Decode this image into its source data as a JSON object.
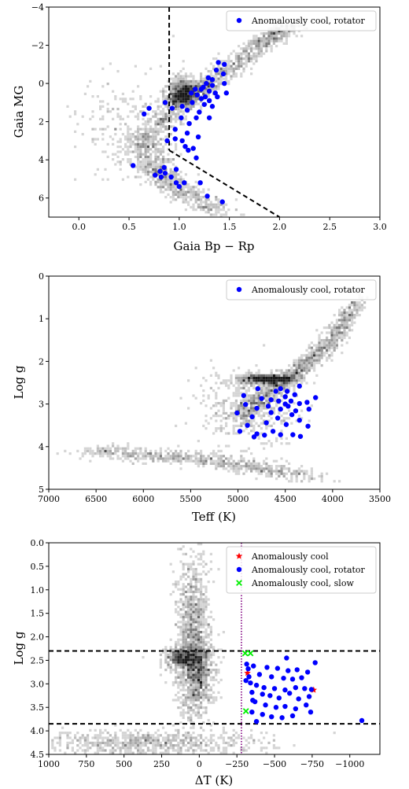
{
  "chart_data": [
    {
      "type": "scatter",
      "xlabel": "Gaia Bp − Rp",
      "ylabel": "Gaia MG",
      "xlim": [
        -0.3,
        3.0
      ],
      "ylim": [
        7.0,
        -4.0
      ],
      "x_ticks": [
        0.0,
        0.5,
        1.0,
        1.5,
        2.0,
        2.5,
        3.0
      ],
      "x_tick_labels": [
        "0.0",
        "0.5",
        "1.0",
        "1.5",
        "2.0",
        "2.5",
        "3.0"
      ],
      "y_ticks": [
        -4,
        -2,
        0,
        2,
        4,
        6
      ],
      "y_tick_labels": [
        "−4",
        "−2",
        "0",
        "2",
        "4",
        "6"
      ],
      "legend": {
        "position": "top-right",
        "entries": [
          {
            "label": "Anomalously cool, rotator",
            "color": "#0000ff",
            "marker": "circle"
          }
        ]
      },
      "background": "greyscale 2D histogram of the full stellar sample (red clump, giant branch and main sequence)",
      "reference_lines": [
        {
          "style": "dashed",
          "color": "#000000",
          "points": [
            [
              0.9,
              -4.0
            ],
            [
              0.9,
              3.5
            ]
          ]
        },
        {
          "style": "dashed",
          "color": "#000000",
          "points": [
            [
              0.9,
              3.5
            ],
            [
              2.0,
              7.0
            ]
          ]
        }
      ],
      "series": [
        {
          "name": "Anomalously cool, rotator",
          "color": "#0000ff",
          "points": [
            [
              1.39,
              -1.1
            ],
            [
              1.45,
              -1.0
            ],
            [
              1.37,
              -0.7
            ],
            [
              1.44,
              -0.5
            ],
            [
              1.29,
              -0.3
            ],
            [
              1.33,
              -0.2
            ],
            [
              1.45,
              0.0
            ],
            [
              1.27,
              0.0
            ],
            [
              1.33,
              0.1
            ],
            [
              1.24,
              0.2
            ],
            [
              1.16,
              0.3
            ],
            [
              1.22,
              0.3
            ],
            [
              1.3,
              0.4
            ],
            [
              1.36,
              0.5
            ],
            [
              1.47,
              0.5
            ],
            [
              1.12,
              0.5
            ],
            [
              1.18,
              0.6
            ],
            [
              1.26,
              0.7
            ],
            [
              1.38,
              0.7
            ],
            [
              1.22,
              0.8
            ],
            [
              1.3,
              0.9
            ],
            [
              1.13,
              1.0
            ],
            [
              0.86,
              1.0
            ],
            [
              1.25,
              1.1
            ],
            [
              1.33,
              1.2
            ],
            [
              1.03,
              1.2
            ],
            [
              0.93,
              1.3
            ],
            [
              1.08,
              1.4
            ],
            [
              1.2,
              1.5
            ],
            [
              0.7,
              1.3
            ],
            [
              0.65,
              1.6
            ],
            [
              1.17,
              1.8
            ],
            [
              1.02,
              1.8
            ],
            [
              1.3,
              1.8
            ],
            [
              1.1,
              2.1
            ],
            [
              0.96,
              2.4
            ],
            [
              1.08,
              2.6
            ],
            [
              1.19,
              2.8
            ],
            [
              0.96,
              2.9
            ],
            [
              1.03,
              3.0
            ],
            [
              0.88,
              3.0
            ],
            [
              1.06,
              3.3
            ],
            [
              1.14,
              3.4
            ],
            [
              1.09,
              3.5
            ],
            [
              1.17,
              3.9
            ],
            [
              0.54,
              4.3
            ],
            [
              0.85,
              4.4
            ],
            [
              0.97,
              4.5
            ],
            [
              0.81,
              4.6
            ],
            [
              0.86,
              4.7
            ],
            [
              0.76,
              4.8
            ],
            [
              0.82,
              4.9
            ],
            [
              0.92,
              4.9
            ],
            [
              0.97,
              5.2
            ],
            [
              1.05,
              5.2
            ],
            [
              1.21,
              5.2
            ],
            [
              1.0,
              5.4
            ],
            [
              1.28,
              5.9
            ],
            [
              1.43,
              6.2
            ]
          ]
        }
      ]
    },
    {
      "type": "scatter",
      "xlabel": "Teff (K)",
      "ylabel": "Log g",
      "xlim": [
        7000,
        3500
      ],
      "ylim": [
        5.0,
        0.0
      ],
      "x_ticks": [
        7000,
        6500,
        6000,
        5500,
        5000,
        4500,
        4000,
        3500
      ],
      "x_tick_labels": [
        "7000",
        "6500",
        "6000",
        "5500",
        "5000",
        "4500",
        "4000",
        "3500"
      ],
      "y_ticks": [
        0,
        1,
        2,
        3,
        4,
        5
      ],
      "y_tick_labels": [
        "0",
        "1",
        "2",
        "3",
        "4",
        "5"
      ],
      "legend": {
        "position": "top-right",
        "entries": [
          {
            "label": "Anomalously cool, rotator",
            "color": "#0000ff",
            "marker": "circle"
          }
        ]
      },
      "background": "greyscale 2D histogram of the full stellar sample (Kiel diagram)",
      "series": [
        {
          "name": "Anomalously cool, rotator",
          "color": "#0000ff",
          "points": [
            [
              4350,
              2.58
            ],
            [
              4550,
              2.64
            ],
            [
              4790,
              2.64
            ],
            [
              4600,
              2.7
            ],
            [
              4480,
              2.7
            ],
            [
              4400,
              2.78
            ],
            [
              4940,
              2.8
            ],
            [
              4500,
              2.83
            ],
            [
              4180,
              2.85
            ],
            [
              4750,
              2.87
            ],
            [
              4650,
              2.9
            ],
            [
              4570,
              2.93
            ],
            [
              4440,
              2.93
            ],
            [
              4270,
              2.96
            ],
            [
              4350,
              2.99
            ],
            [
              4500,
              3.0
            ],
            [
              4920,
              3.01
            ],
            [
              4680,
              3.05
            ],
            [
              4470,
              3.05
            ],
            [
              4800,
              3.1
            ],
            [
              4550,
              3.12
            ],
            [
              4250,
              3.12
            ],
            [
              4390,
              3.16
            ],
            [
              5010,
              3.21
            ],
            [
              4650,
              3.2
            ],
            [
              4430,
              3.25
            ],
            [
              4850,
              3.3
            ],
            [
              4580,
              3.33
            ],
            [
              4350,
              3.38
            ],
            [
              4700,
              3.44
            ],
            [
              4490,
              3.48
            ],
            [
              4900,
              3.5
            ],
            [
              4260,
              3.52
            ],
            [
              4980,
              3.64
            ],
            [
              4630,
              3.64
            ],
            [
              4800,
              3.7
            ],
            [
              4550,
              3.72
            ],
            [
              4420,
              3.72
            ],
            [
              4720,
              3.73
            ],
            [
              4340,
              3.76
            ],
            [
              4830,
              3.77
            ]
          ]
        }
      ]
    },
    {
      "type": "scatter",
      "xlabel": "ΔT (K)",
      "ylabel": "Log g",
      "xlim": [
        1000,
        -1200
      ],
      "ylim": [
        4.5,
        0.0
      ],
      "x_ticks": [
        1000,
        750,
        500,
        250,
        0,
        -250,
        -500,
        -750,
        -1000
      ],
      "x_tick_labels": [
        "1000",
        "750",
        "500",
        "250",
        "0",
        "−250",
        "−500",
        "−750",
        "−1000"
      ],
      "y_ticks": [
        0.0,
        0.5,
        1.0,
        1.5,
        2.0,
        2.5,
        3.0,
        3.5,
        4.0,
        4.5
      ],
      "y_tick_labels": [
        "0.0",
        "0.5",
        "1.0",
        "1.5",
        "2.0",
        "2.5",
        "3.0",
        "3.5",
        "4.0",
        "4.5"
      ],
      "legend": {
        "position": "top-right",
        "entries": [
          {
            "label": "Anomalously cool",
            "color": "#ff0000",
            "marker": "star"
          },
          {
            "label": "Anomalously cool, rotator",
            "color": "#0000ff",
            "marker": "circle"
          },
          {
            "label": "Anomalously cool, slow",
            "color": "#00ee00",
            "marker": "cross"
          }
        ]
      },
      "background": "greyscale 2D histogram of the full stellar sample",
      "reference_lines": [
        {
          "style": "dashed",
          "color": "#000000",
          "orientation": "horizontal",
          "value": 2.3
        },
        {
          "style": "dashed",
          "color": "#000000",
          "orientation": "horizontal",
          "value": 3.85
        },
        {
          "style": "dotted",
          "color": "#800080",
          "orientation": "vertical",
          "value": -280
        }
      ],
      "series": [
        {
          "name": "Anomalously cool",
          "color": "#ff0000",
          "marker": "star",
          "points": [
            [
              -320,
              2.77
            ],
            [
              -760,
              3.13
            ]
          ]
        },
        {
          "name": "Anomalously cool, rotator",
          "color": "#0000ff",
          "marker": "circle",
          "points": [
            [
              -325,
              2.68
            ],
            [
              -360,
              2.62
            ],
            [
              -450,
              2.65
            ],
            [
              -520,
              2.67
            ],
            [
              -590,
              2.72
            ],
            [
              -650,
              2.7
            ],
            [
              -720,
              2.75
            ],
            [
              -400,
              2.8
            ],
            [
              -480,
              2.85
            ],
            [
              -560,
              2.88
            ],
            [
              -620,
              2.9
            ],
            [
              -680,
              2.87
            ],
            [
              -310,
              2.93
            ],
            [
              -340,
              2.98
            ],
            [
              -380,
              3.03
            ],
            [
              -430,
              3.08
            ],
            [
              -500,
              3.1
            ],
            [
              -570,
              3.13
            ],
            [
              -640,
              3.08
            ],
            [
              -700,
              3.1
            ],
            [
              -745,
              3.12
            ],
            [
              -350,
              3.18
            ],
            [
              -420,
              3.22
            ],
            [
              -470,
              3.25
            ],
            [
              -530,
              3.3
            ],
            [
              -600,
              3.2
            ],
            [
              -660,
              3.32
            ],
            [
              -730,
              3.27
            ],
            [
              -370,
              3.38
            ],
            [
              -440,
              3.45
            ],
            [
              -510,
              3.5
            ],
            [
              -570,
              3.48
            ],
            [
              -640,
              3.53
            ],
            [
              -710,
              3.45
            ],
            [
              -350,
              3.6
            ],
            [
              -420,
              3.65
            ],
            [
              -480,
              3.7
            ],
            [
              -550,
              3.72
            ],
            [
              -620,
              3.68
            ],
            [
              -740,
              3.6
            ],
            [
              -380,
              3.8
            ],
            [
              -1080,
              3.78
            ],
            [
              -580,
              2.45
            ],
            [
              -770,
              2.55
            ],
            [
              -315,
              2.58
            ],
            [
              -330,
              2.85
            ],
            [
              -355,
              3.35
            ]
          ]
        },
        {
          "name": "Anomalously cool, slow",
          "color": "#00ee00",
          "marker": "cross",
          "points": [
            [
              -305,
              2.35
            ],
            [
              -340,
              2.35
            ],
            [
              -310,
              3.58
            ]
          ]
        }
      ]
    }
  ]
}
